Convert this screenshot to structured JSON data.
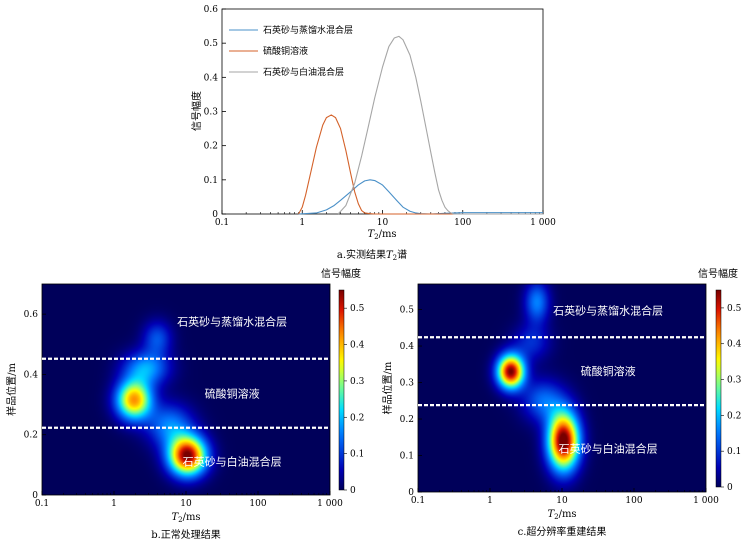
{
  "chart_data": [
    {
      "type": "line",
      "caption": "a.实测结果T₂谱",
      "xlabel": "T₂/ms",
      "ylabel": "信号幅度",
      "xscale": "log",
      "xlim": [
        0.1,
        1000
      ],
      "ylim": [
        0,
        0.6
      ],
      "xticks": [
        "0.1",
        "1",
        "10",
        "100",
        "1 000"
      ],
      "yticks": [
        "0",
        "0.1",
        "0.2",
        "0.3",
        "0.4",
        "0.5",
        "0.6"
      ],
      "legend_position": "top-left",
      "grid": false,
      "series": [
        {
          "name": "石英砂与蒸馏水混合层",
          "color": "#4a90c8",
          "x": [
            0.9,
            1.5,
            2.0,
            2.5,
            3.0,
            4.0,
            5.0,
            6.0,
            7.0,
            8.0,
            10.0,
            12.0,
            15.0,
            18.0,
            22.0,
            26.0,
            30.0,
            40.0,
            60.0,
            80.0,
            100.0,
            300.0,
            1000.0
          ],
          "y": [
            0.0,
            0.003,
            0.012,
            0.025,
            0.04,
            0.065,
            0.085,
            0.097,
            0.1,
            0.098,
            0.085,
            0.065,
            0.04,
            0.02,
            0.008,
            0.003,
            0.001,
            0.0,
            0.002,
            0.003,
            0.004,
            0.004,
            0.004
          ]
        },
        {
          "name": "硫酸铜溶液",
          "color": "#d4622a",
          "x": [
            0.9,
            1.0,
            1.1,
            1.3,
            1.5,
            1.8,
            2.0,
            2.3,
            2.6,
            3.0,
            3.5,
            4.0,
            4.5,
            5.0,
            5.5,
            6.0,
            7.0,
            8.0,
            10.0,
            20.0,
            100.0,
            1000.0
          ],
          "y": [
            0.0,
            0.02,
            0.055,
            0.13,
            0.195,
            0.26,
            0.282,
            0.29,
            0.282,
            0.25,
            0.185,
            0.12,
            0.065,
            0.03,
            0.01,
            0.003,
            0.001,
            0.0,
            0.0,
            0.0,
            0.0,
            0.0
          ]
        },
        {
          "name": "石英砂与白油混合层",
          "color": "#a6a6a6",
          "x": [
            2.8,
            3.5,
            4.5,
            5.5,
            6.5,
            8.0,
            10.0,
            12.0,
            14.0,
            16.0,
            18.0,
            22.0,
            26.0,
            30.0,
            35.0,
            40.0,
            45.0,
            50.0,
            55.0,
            60.0,
            65.0,
            70.0,
            75.0,
            80.0,
            1000.0
          ],
          "y": [
            0.0,
            0.025,
            0.09,
            0.17,
            0.245,
            0.34,
            0.43,
            0.49,
            0.515,
            0.52,
            0.51,
            0.465,
            0.4,
            0.33,
            0.25,
            0.18,
            0.12,
            0.07,
            0.04,
            0.02,
            0.01,
            0.004,
            0.001,
            0.0,
            0.0
          ]
        }
      ]
    },
    {
      "type": "heatmap",
      "caption": "b.正常处理结果",
      "xlabel": "T₂/ms",
      "ylabel": "样品位置/m",
      "xscale": "log",
      "xlim": [
        0.1,
        1000
      ],
      "ylim": [
        0,
        0.7
      ],
      "xticks": [
        "0.1",
        "1",
        "10",
        "100",
        "1 000"
      ],
      "yticks": [
        "0",
        "0.2",
        "0.4",
        "0.6"
      ],
      "colorbar_title": "信号幅度",
      "colorbar_range": [
        0,
        0.55
      ],
      "colorbar_ticks": [
        "0",
        "0.1",
        "0.2",
        "0.3",
        "0.4",
        "0.5"
      ],
      "boundaries_m": [
        0.223,
        0.452
      ],
      "region_labels": [
        "石英砂与蒸馏水混合层",
        "硫酸铜溶液",
        "石英砂与白油混合层"
      ],
      "blobs": [
        {
          "T2_ms": 10.5,
          "position_m": 0.13,
          "amplitude": 0.55,
          "log_spread": 0.18,
          "pos_spread_m": 0.045
        },
        {
          "T2_ms": 1.9,
          "position_m": 0.315,
          "amplitude": 0.42,
          "log_spread": 0.17,
          "pos_spread_m": 0.045
        },
        {
          "T2_ms": 2.8,
          "position_m": 0.42,
          "amplitude": 0.18,
          "log_spread": 0.22,
          "pos_spread_m": 0.04
        },
        {
          "T2_ms": 4.0,
          "position_m": 0.52,
          "amplitude": 0.12,
          "log_spread": 0.14,
          "pos_spread_m": 0.04
        },
        {
          "T2_ms": 6.0,
          "position_m": 0.23,
          "amplitude": 0.16,
          "log_spread": 0.22,
          "pos_spread_m": 0.05
        }
      ]
    },
    {
      "type": "heatmap",
      "caption": "c.超分辨率重建结果",
      "xlabel": "T₂/ms",
      "ylabel": "样品位置/m",
      "xscale": "log",
      "xlim": [
        0.1,
        1000
      ],
      "ylim": [
        0,
        0.57
      ],
      "xticks": [
        "0.1",
        "1",
        "10",
        "100",
        "1 000"
      ],
      "yticks": [
        "0",
        "0.1",
        "0.2",
        "0.3",
        "0.4",
        "0.5"
      ],
      "colorbar_title": "信号幅度",
      "colorbar_range": [
        0,
        0.55
      ],
      "colorbar_ticks": [
        "0",
        "0.1",
        "0.2",
        "0.3",
        "0.4",
        "0.5"
      ],
      "boundaries_m": [
        0.238,
        0.424
      ],
      "region_labels": [
        "石英砂与蒸馏水混合层",
        "硫酸铜溶液",
        "石英砂与白油混合层"
      ],
      "blobs": [
        {
          "T2_ms": 10.5,
          "position_m": 0.14,
          "amplitude": 0.58,
          "log_spread": 0.15,
          "pos_spread_m": 0.055
        },
        {
          "T2_ms": 1.95,
          "position_m": 0.33,
          "amplitude": 0.55,
          "log_spread": 0.13,
          "pos_spread_m": 0.032
        },
        {
          "T2_ms": 4.5,
          "position_m": 0.52,
          "amplitude": 0.16,
          "log_spread": 0.12,
          "pos_spread_m": 0.04
        },
        {
          "T2_ms": 3.8,
          "position_m": 0.41,
          "amplitude": 0.09,
          "log_spread": 0.18,
          "pos_spread_m": 0.035
        },
        {
          "T2_ms": 5.5,
          "position_m": 0.25,
          "amplitude": 0.14,
          "log_spread": 0.2,
          "pos_spread_m": 0.04
        }
      ]
    }
  ]
}
